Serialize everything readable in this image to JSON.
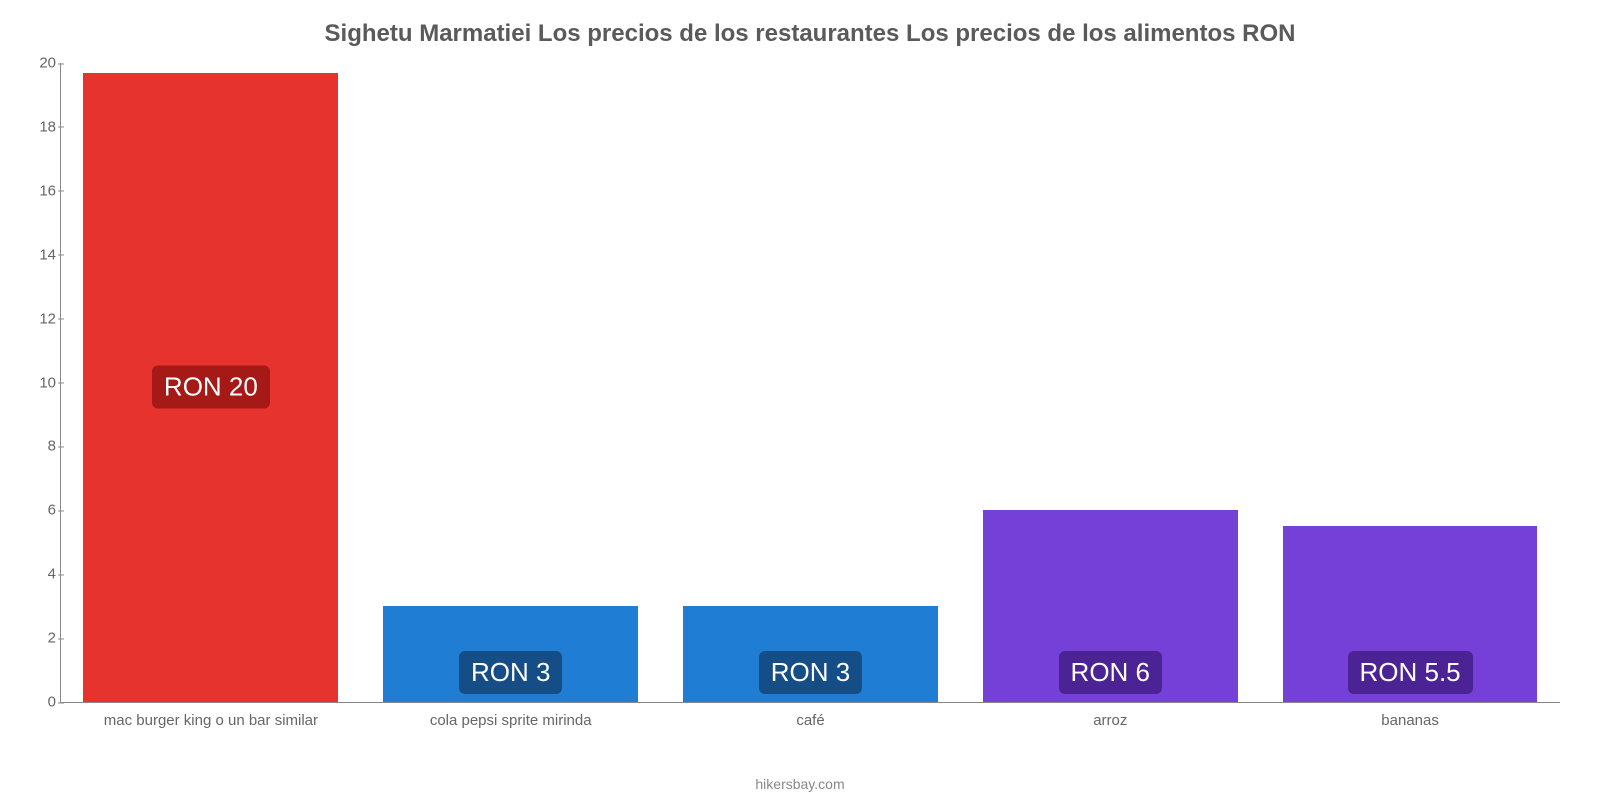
{
  "chart": {
    "type": "bar",
    "title": "Sighetu Marmatiei Los precios de los restaurantes Los precios de los alimentos RON",
    "title_color": "#5a5a5a",
    "title_fontsize": 24,
    "background_color": "#ffffff",
    "axis_color": "#888888",
    "tick_label_color": "#666666",
    "tick_label_fontsize": 15,
    "ylim": [
      0,
      20
    ],
    "ytick_step": 2,
    "yticks": [
      0,
      2,
      4,
      6,
      8,
      10,
      12,
      14,
      16,
      18,
      20
    ],
    "bar_width_pct": 85,
    "categories": [
      "mac burger king o un bar similar",
      "cola pepsi sprite mirinda",
      "café",
      "arroz",
      "bananas"
    ],
    "values": [
      19.7,
      3,
      3,
      6,
      5.5
    ],
    "value_labels": [
      "RON 20",
      "RON 3",
      "RON 3",
      "RON 6",
      "RON 5.5"
    ],
    "bar_colors": [
      "#e6332e",
      "#1f7ed3",
      "#1f7ed3",
      "#7540d7",
      "#7540d7"
    ],
    "label_bg_colors": [
      "#a51a17",
      "#154e87",
      "#154e87",
      "#4b2394",
      "#4b2394"
    ],
    "label_text_color": "#ffffff",
    "label_fontsize": 26,
    "attribution": "hikersbay.com",
    "attribution_color": "#888888"
  }
}
